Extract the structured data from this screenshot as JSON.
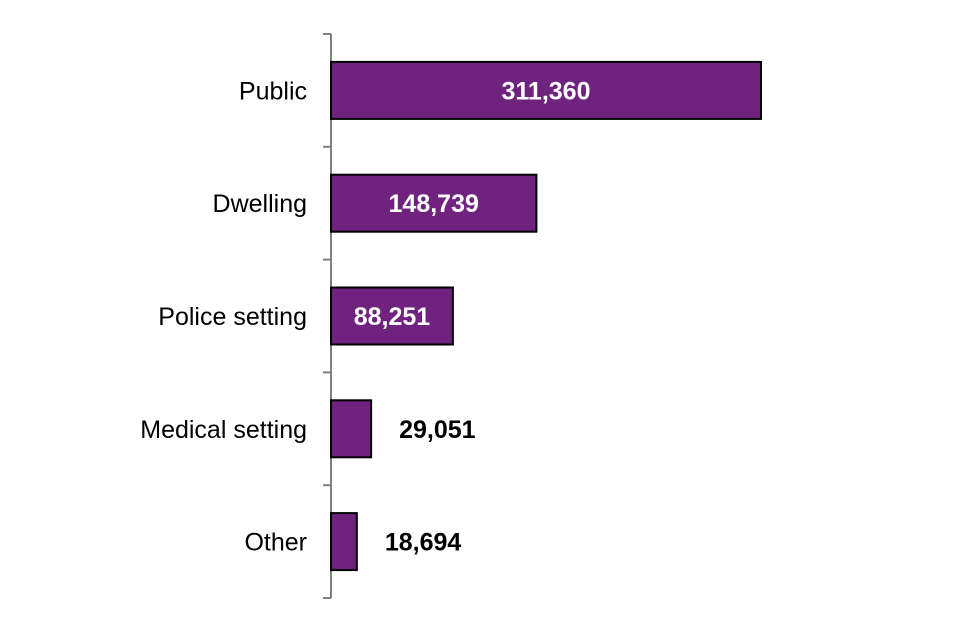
{
  "chart_data": {
    "type": "bar",
    "orientation": "horizontal",
    "title": "",
    "xlabel": "",
    "ylabel": "",
    "categories": [
      "Public",
      "Dwelling",
      "Police setting",
      "Medical setting",
      "Other"
    ],
    "values": [
      311360,
      148739,
      88251,
      29051,
      18694
    ],
    "value_labels": [
      "311,360",
      "148,739",
      "88,251",
      "29,051",
      "18,694"
    ],
    "xlim": [
      0,
      311360
    ],
    "grid": false,
    "legend": "none",
    "colors": {
      "bar": "#70237e",
      "bar_border": "#000000",
      "label_inside": "#ffffff",
      "label_outside": "#000000",
      "axis": "#7f7f7f"
    }
  }
}
